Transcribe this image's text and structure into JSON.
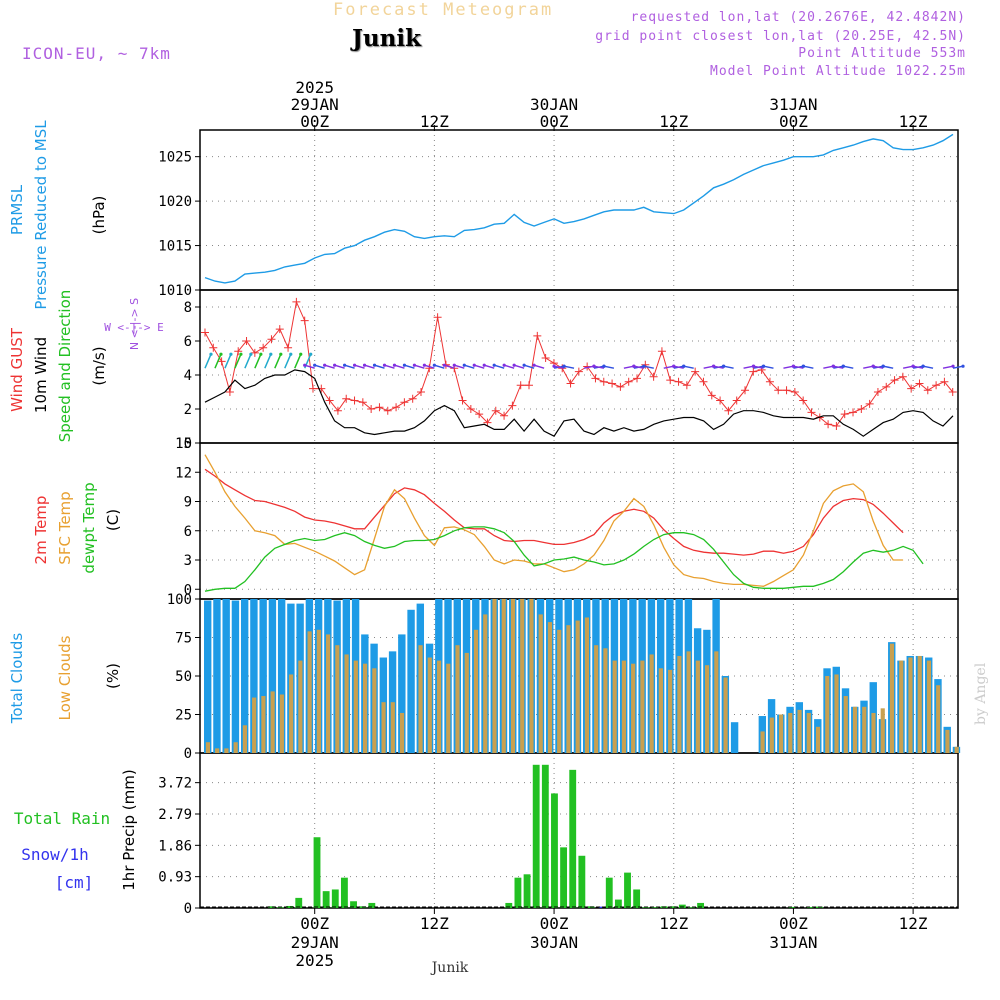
{
  "header": {
    "faded_title": "Forecast Meteogram",
    "location": "Junik",
    "model": "ICON-EU, ~ 7km",
    "requested": "requested lon,lat (20.2676E, 42.4842N)",
    "grid_point": "grid point closest lon,lat (20.25E, 42.5N)",
    "point_alt": "Point Altitude 553m",
    "model_alt": "Model Point Altitude 1022.25m",
    "credit": "by Angel",
    "footer_location": "Junik"
  },
  "time_axis": {
    "top": [
      {
        "t": 0,
        "l1": "2025",
        "l2": "29JAN",
        "l3": "00Z"
      },
      {
        "t": 12,
        "l1": "",
        "l2": "",
        "l3": "12Z"
      },
      {
        "t": 24,
        "l1": "",
        "l2": "30JAN",
        "l3": "00Z"
      },
      {
        "t": 36,
        "l1": "",
        "l2": "",
        "l3": "12Z"
      },
      {
        "t": 48,
        "l1": "",
        "l2": "31JAN",
        "l3": "00Z"
      },
      {
        "t": 60,
        "l1": "",
        "l2": "",
        "l3": "12Z"
      }
    ],
    "bottom": [
      {
        "t": 0,
        "l1": "00Z",
        "l2": "29JAN",
        "l3": "2025"
      },
      {
        "t": 12,
        "l1": "12Z",
        "l2": "",
        "l3": ""
      },
      {
        "t": 24,
        "l1": "00Z",
        "l2": "30JAN",
        "l3": ""
      },
      {
        "t": 36,
        "l1": "12Z",
        "l2": "",
        "l3": ""
      },
      {
        "t": 48,
        "l1": "00Z",
        "l2": "31JAN",
        "l3": ""
      },
      {
        "t": 60,
        "l1": "12Z",
        "l2": "",
        "l3": ""
      }
    ],
    "range_hours": [
      -11.5,
      64.5
    ]
  },
  "panel_labels": {
    "pressure": {
      "l1": "PRMSL",
      "l2": "Pressure Reduced to MSL",
      "unit": "(hPa)"
    },
    "wind": {
      "l1": "Wind GUST",
      "l2": "10m Wind",
      "l3": "Speed and Direction",
      "unit": "(m/s)",
      "compass_ns": "N <-|-> S",
      "compass_we": "W <-|-> E"
    },
    "temp": {
      "l1": "2m Temp",
      "l2": "SFC Temp",
      "l3": "dewpt Temp",
      "unit": "(C)"
    },
    "clouds": {
      "l1": "Total Clouds",
      "l2": "Low Clouds",
      "unit": "(%)"
    },
    "precip": {
      "l1": "Total  Rain",
      "l2": "Snow/1h",
      "l3": "[cm]",
      "unit": "1hr Precip (mm)"
    }
  },
  "colors": {
    "pressure": "#1e9be6",
    "gust": "#ee3333",
    "wind": "#000000",
    "temp": "#ee3333",
    "sfc": "#e8a030",
    "dew": "#22c022",
    "total_cloud": "#1e9be6",
    "low_cloud": "#c8a050",
    "rain": "#22c022",
    "snow": "#3333ee",
    "compass": "#a050e0",
    "grid": "#888888",
    "credit": "#cccccc"
  },
  "chart_data": [
    {
      "type": "line",
      "name": "pressure",
      "ylim": [
        1010,
        1028
      ],
      "yticks": [
        1010,
        1015,
        1020,
        1025
      ],
      "start_hour": -11,
      "values": [
        1011.4,
        1011,
        1010.8,
        1011,
        1011.8,
        1011.9,
        1012,
        1012.2,
        1012.6,
        1012.8,
        1013,
        1013.6,
        1014,
        1014.1,
        1014.7,
        1015,
        1015.6,
        1016,
        1016.5,
        1016.8,
        1016.6,
        1016,
        1015.8,
        1016,
        1016.1,
        1016,
        1016.7,
        1016.8,
        1017,
        1017.4,
        1017.5,
        1018.5,
        1017.6,
        1017.2,
        1017.6,
        1018,
        1017.5,
        1017.7,
        1018,
        1018.4,
        1018.8,
        1019,
        1019,
        1019,
        1019.3,
        1018.8,
        1018.7,
        1018.6,
        1019,
        1019.8,
        1020.6,
        1021.5,
        1021.9,
        1022.4,
        1023,
        1023.5,
        1024,
        1024.3,
        1024.6,
        1025,
        1025,
        1025,
        1025.2,
        1025.7,
        1026,
        1026.3,
        1026.7,
        1027,
        1026.8,
        1026,
        1025.8,
        1025.8,
        1026,
        1026.3,
        1026.8,
        1027.5
      ]
    },
    {
      "type": "line",
      "name": "wind",
      "ylim": [
        0,
        9
      ],
      "yticks": [
        0,
        2,
        4,
        6,
        8
      ],
      "start_hour": -11,
      "gust": [
        6.5,
        5.6,
        4.8,
        3,
        5.4,
        6,
        5.3,
        5.6,
        6.1,
        6.7,
        5.6,
        8.3,
        7.2,
        3.2,
        3.2,
        2.5,
        1.9,
        2.6,
        2.5,
        2.4,
        2,
        2.1,
        1.9,
        2.1,
        2.4,
        2.6,
        3,
        4.4,
        7.4,
        4.6,
        4.4,
        2.5,
        2,
        1.7,
        1.2,
        1.9,
        1.6,
        2.2,
        3.4,
        3.4,
        6.3,
        5,
        4.7,
        4.4,
        3.5,
        4.2,
        4.5,
        3.8,
        3.6,
        3.5,
        3.3,
        3.6,
        3.8,
        4.6,
        3.9,
        5.4,
        3.7,
        3.6,
        3.4,
        4.2,
        3.6,
        2.8,
        2.5,
        1.9,
        2.5,
        3.1,
        4.2,
        4.3,
        3.6,
        3.1,
        3.1,
        3,
        2.5,
        1.8,
        1.5,
        1.1,
        1,
        1.7,
        1.8,
        2,
        2.3,
        3,
        3.3,
        3.7,
        3.9,
        3.2,
        3.5,
        3.1,
        3.4,
        3.6,
        3
      ],
      "wind": [
        2.4,
        2.7,
        3,
        3.7,
        3.2,
        3.4,
        3.8,
        4,
        4,
        4.3,
        4.2,
        3.8,
        2.4,
        1.3,
        0.9,
        0.9,
        0.6,
        0.5,
        0.6,
        0.7,
        0.7,
        0.9,
        1.3,
        1.9,
        2.2,
        1.9,
        0.9,
        1,
        1.1,
        0.8,
        0.8,
        1.4,
        0.7,
        1.4,
        0.7,
        0.4,
        1.3,
        1.4,
        0.7,
        0.5,
        0.9,
        0.7,
        0.9,
        0.7,
        0.8,
        1.1,
        1.3,
        1.4,
        1.5,
        1.5,
        1.3,
        0.8,
        1.1,
        1.7,
        1.9,
        1.9,
        1.8,
        1.6,
        1.5,
        1.5,
        1.5,
        1.4,
        1.6,
        1.6,
        1.1,
        0.8,
        0.4,
        0.8,
        1.2,
        1.4,
        1.8,
        1.9,
        1.8,
        1.3,
        1,
        1.6
      ]
    },
    {
      "type": "line",
      "name": "temperature",
      "ylim": [
        -1,
        15
      ],
      "yticks": [
        0,
        3,
        6,
        9,
        12,
        15
      ],
      "start_hour": -11,
      "temp2m": [
        12.3,
        11.6,
        10.8,
        10.2,
        9.6,
        9.1,
        9,
        8.7,
        8.4,
        8,
        7.4,
        7.1,
        7,
        6.8,
        6.5,
        6.2,
        6.2,
        7.4,
        8.6,
        9.8,
        10.4,
        10.2,
        9.7,
        8.8,
        8,
        7.1,
        6.3,
        6.2,
        6.2,
        5.5,
        5,
        4.9,
        5,
        5,
        4.8,
        4.6,
        4.6,
        4.8,
        5.1,
        5.6,
        6.8,
        7.6,
        8,
        8.2,
        8,
        7.3,
        6.1,
        5.2,
        4.4,
        4,
        3.8,
        3.7,
        3.7,
        3.6,
        3.5,
        3.6,
        3.9,
        3.9,
        3.7,
        3.9,
        4.4,
        5.6,
        7.3,
        8.5,
        9.1,
        9.3,
        9.2,
        8.7,
        7.8,
        6.8,
        5.8
      ],
      "sfc": [
        13.8,
        12,
        10,
        8.5,
        7.3,
        6,
        5.8,
        5.5,
        4.6,
        4.7,
        4.3,
        3.9,
        3.4,
        2.9,
        2.2,
        1.5,
        2,
        5.2,
        8.5,
        10.2,
        9.3,
        7.3,
        5.5,
        4.5,
        6.3,
        6.4,
        6.1,
        5.6,
        4.4,
        3,
        2.6,
        3,
        2.9,
        2.6,
        2.6,
        2.2,
        1.8,
        2,
        2.6,
        3.5,
        5,
        7,
        8,
        9.3,
        8.5,
        6.6,
        4.3,
        2.5,
        1.5,
        1.2,
        1.1,
        0.8,
        0.6,
        0.5,
        0.5,
        0.4,
        0.3,
        0.8,
        1.4,
        2,
        3.5,
        6,
        8.8,
        10.1,
        10.6,
        10.8,
        10,
        7,
        4.5,
        3,
        3
      ],
      "dew": [
        -0.2,
        0,
        0.1,
        0.1,
        0.8,
        2,
        3.3,
        4.2,
        4.6,
        5,
        5.2,
        5,
        5.1,
        5.5,
        5.8,
        5.5,
        4.9,
        4.5,
        4.2,
        4.4,
        4.9,
        5,
        5,
        5.1,
        5.5,
        6,
        6.3,
        6.4,
        6.4,
        6.2,
        5.8,
        4.9,
        3.5,
        2.4,
        2.6,
        3,
        3.1,
        3.3,
        3,
        2.8,
        2.5,
        2.6,
        3,
        3.6,
        4.4,
        5.1,
        5.6,
        5.8,
        5.8,
        5.6,
        5.1,
        4.1,
        2.8,
        1.5,
        0.6,
        0.2,
        0.1,
        0.1,
        0.1,
        0.2,
        0.3,
        0.3,
        0.6,
        1,
        1.8,
        2.8,
        3.7,
        4,
        3.8,
        4,
        4.4,
        4,
        2.6
      ]
    },
    {
      "type": "bar",
      "name": "clouds",
      "ylim": [
        0,
        100
      ],
      "yticks": [
        0,
        25,
        50,
        75,
        100
      ],
      "start_hour": -11,
      "total": [
        99,
        100,
        100,
        99,
        100,
        100,
        100,
        100,
        100,
        97,
        97,
        100,
        100,
        100,
        99,
        100,
        100,
        77,
        71,
        62,
        66,
        77,
        93,
        97,
        71,
        100,
        100,
        100,
        100,
        100,
        100,
        100,
        100,
        100,
        100,
        100,
        100,
        100,
        100,
        100,
        100,
        100,
        100,
        100,
        100,
        100,
        100,
        100,
        100,
        100,
        100,
        100,
        100,
        81,
        80,
        100,
        50,
        20,
        0,
        0,
        24,
        35,
        25,
        30,
        33,
        28,
        22,
        55,
        56,
        42,
        30,
        34,
        46,
        22,
        72,
        60,
        63,
        63,
        62,
        48,
        17,
        4
      ],
      "low": [
        7,
        3,
        3,
        7,
        18,
        36,
        37,
        40,
        38,
        51,
        60,
        79,
        80,
        77,
        70,
        64,
        60,
        58,
        55,
        33,
        33,
        26,
        0,
        70,
        62,
        60,
        58,
        70,
        65,
        80,
        90,
        100,
        100,
        100,
        100,
        100,
        90,
        85,
        80,
        83,
        86,
        88,
        70,
        68,
        60,
        60,
        58,
        60,
        64,
        55,
        54,
        63,
        66,
        60,
        57,
        66,
        49,
        0,
        0,
        0,
        14,
        23,
        25,
        26,
        28,
        26,
        17,
        50,
        51,
        37,
        30,
        30,
        26,
        29,
        71,
        60,
        62,
        63,
        60,
        44,
        15,
        4
      ]
    },
    {
      "type": "bar",
      "name": "precip",
      "ylim": [
        0,
        4.6
      ],
      "yticks": [
        0,
        0.93,
        1.86,
        2.79,
        3.72
      ],
      "start_hour": -11,
      "rain": [
        0,
        0,
        0,
        0,
        0,
        0,
        0,
        0.05,
        0.02,
        0.06,
        0.3,
        0,
        2.1,
        0.5,
        0.55,
        0.9,
        0.2,
        0.05,
        0.15,
        0,
        0,
        0,
        0,
        0,
        0,
        0,
        0,
        0,
        0,
        0,
        0,
        0,
        0,
        0.15,
        0.9,
        1,
        4.25,
        4.25,
        3.4,
        1.8,
        4.1,
        1.55,
        0.05,
        0,
        0.9,
        0.25,
        1.05,
        0.55,
        0.02,
        0.02,
        0.05,
        0.05,
        0.1,
        0.02,
        0.15,
        0,
        0,
        0,
        0,
        0,
        0,
        0,
        0,
        0,
        0.03,
        0,
        0.03,
        0.04,
        0,
        0,
        0,
        0,
        0,
        0,
        0,
        0,
        0,
        0,
        0,
        0,
        0,
        0,
        0
      ],
      "snow": [
        0,
        0,
        0,
        0,
        0,
        0,
        0,
        0,
        0,
        0,
        0,
        0,
        0,
        0,
        0,
        0,
        0,
        0,
        0,
        0,
        0,
        0,
        0,
        0,
        0,
        0,
        0,
        0,
        0,
        0,
        0,
        0,
        0,
        0,
        0,
        0,
        0,
        0,
        0,
        0,
        0,
        0,
        0,
        0.04,
        0,
        0,
        0,
        0,
        0,
        0,
        0,
        0,
        0,
        0,
        0,
        0,
        0,
        0,
        0,
        0,
        0,
        0,
        0,
        0,
        0,
        0,
        0,
        0,
        0,
        0,
        0,
        0,
        0,
        0,
        0,
        0,
        0,
        0,
        0,
        0,
        0,
        0,
        0
      ]
    }
  ]
}
